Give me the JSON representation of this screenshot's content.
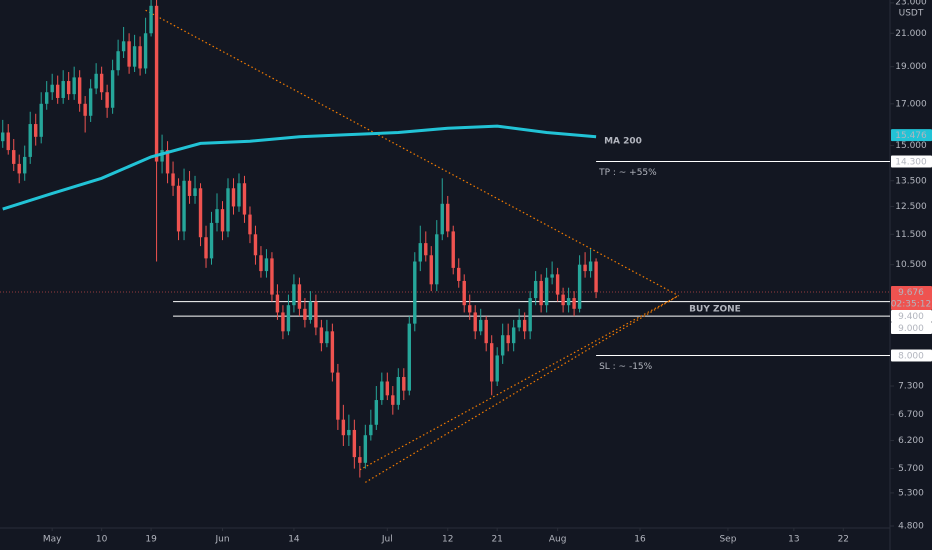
{
  "chart_data": {
    "type": "candlestick",
    "currency": "USDT",
    "log_scale": true,
    "grid": false,
    "up_color": "#26a69a",
    "down_color": "#ef5350",
    "xlim": [
      "04-22",
      "09-30"
    ],
    "ylim": [
      4.8,
      23.2
    ],
    "xticks": [
      {
        "value": "05-01",
        "label": "May"
      },
      {
        "value": "05-10",
        "label": "10"
      },
      {
        "value": "05-19",
        "label": "19"
      },
      {
        "value": "06-01",
        "label": "Jun"
      },
      {
        "value": "06-14",
        "label": "14"
      },
      {
        "value": "07-01",
        "label": "Jul"
      },
      {
        "value": "07-12",
        "label": "12"
      },
      {
        "value": "07-21",
        "label": "21"
      },
      {
        "value": "08-01",
        "label": "Aug"
      },
      {
        "value": "08-16",
        "label": "16"
      },
      {
        "value": "09-01",
        "label": "Sep"
      },
      {
        "value": "09-13",
        "label": "13"
      },
      {
        "value": "09-22",
        "label": "22"
      }
    ],
    "yticks": [
      {
        "value": 23,
        "label": "23.000"
      },
      {
        "value": 21,
        "label": "21.000"
      },
      {
        "value": 19,
        "label": "19.000"
      },
      {
        "value": 17,
        "label": "17.000"
      },
      {
        "value": 15,
        "label": "15.000"
      },
      {
        "value": 13.5,
        "label": "13.500"
      },
      {
        "value": 12.5,
        "label": "12.500"
      },
      {
        "value": 11.5,
        "label": "11.500"
      },
      {
        "value": 10.5,
        "label": "10.500"
      },
      {
        "value": 7.3,
        "label": "7.300"
      },
      {
        "value": 6.7,
        "label": "6.700"
      },
      {
        "value": 6.2,
        "label": "6.200"
      },
      {
        "value": 5.7,
        "label": "5.700"
      },
      {
        "value": 5.3,
        "label": "5.300"
      },
      {
        "value": 4.8,
        "label": "4.800"
      }
    ],
    "x": [
      "04-22",
      "04-23",
      "04-24",
      "04-25",
      "04-26",
      "04-27",
      "04-28",
      "04-29",
      "04-30",
      "05-01",
      "05-02",
      "05-03",
      "05-04",
      "05-05",
      "05-06",
      "05-07",
      "05-08",
      "05-09",
      "05-10",
      "05-11",
      "05-12",
      "05-13",
      "05-14",
      "05-15",
      "05-16",
      "05-17",
      "05-18",
      "05-19",
      "05-20",
      "05-21",
      "05-22",
      "05-23",
      "05-24",
      "05-25",
      "05-26",
      "05-27",
      "05-28",
      "05-29",
      "05-30",
      "05-31",
      "06-01",
      "06-02",
      "06-03",
      "06-04",
      "06-05",
      "06-06",
      "06-07",
      "06-08",
      "06-09",
      "06-10",
      "06-11",
      "06-12",
      "06-13",
      "06-14",
      "06-15",
      "06-16",
      "06-17",
      "06-18",
      "06-19",
      "06-20",
      "06-21",
      "06-22",
      "06-23",
      "06-24",
      "06-25",
      "06-26",
      "06-27",
      "06-28",
      "06-29",
      "06-30",
      "07-01",
      "07-02",
      "07-03",
      "07-04",
      "07-05",
      "07-06",
      "07-07",
      "07-08",
      "07-09",
      "07-10",
      "07-11",
      "07-12",
      "07-13",
      "07-14",
      "07-15",
      "07-16",
      "07-17",
      "07-18",
      "07-19",
      "07-20",
      "07-21",
      "07-22",
      "07-23",
      "07-24",
      "07-25",
      "07-26",
      "07-27",
      "07-28",
      "07-29",
      "07-30",
      "07-31",
      "08-01",
      "08-02",
      "08-03",
      "08-04",
      "08-05",
      "08-06",
      "08-07",
      "08-08"
    ],
    "open": [
      15.2,
      15.6,
      14.8,
      14.2,
      13.8,
      14.5,
      16.0,
      15.4,
      17.0,
      17.6,
      18.0,
      17.3,
      18.2,
      17.5,
      18.4,
      17.0,
      16.4,
      17.8,
      18.6,
      17.6,
      16.8,
      18.8,
      19.9,
      20.5,
      19.0,
      20.2,
      18.9,
      21.0,
      22.8,
      14.3,
      14.8,
      13.8,
      13.3,
      11.6,
      13.5,
      12.9,
      13.2,
      11.4,
      10.7,
      11.9,
      12.4,
      11.6,
      13.2,
      12.5,
      13.4,
      12.2,
      11.5,
      10.8,
      10.3,
      10.7,
      9.6,
      9.1,
      8.6,
      9.3,
      9.9,
      9.2,
      8.9,
      9.4,
      8.7,
      8.3,
      8.6,
      7.6,
      6.6,
      6.3,
      6.4,
      5.9,
      5.8,
      6.3,
      6.5,
      7.0,
      7.4,
      7.1,
      6.9,
      7.5,
      7.2,
      8.8,
      10.6,
      11.2,
      10.8,
      9.9,
      11.5,
      12.6,
      11.6,
      10.4,
      10.0,
      9.3,
      9.1,
      8.6,
      8.9,
      8.3,
      7.4,
      8.0,
      8.5,
      8.3,
      8.7,
      8.9,
      8.6,
      9.5,
      10.0,
      9.3,
      10.1,
      10.2,
      9.6,
      9.3,
      9.5,
      9.2,
      10.5,
      10.3,
      10.6
    ],
    "high": [
      16.2,
      16.0,
      15.3,
      14.6,
      15.0,
      16.6,
      16.5,
      17.6,
      18.2,
      18.6,
      18.5,
      18.8,
      18.7,
      19.0,
      18.8,
      17.4,
      18.3,
      19.2,
      19.0,
      18.0,
      19.4,
      20.6,
      21.4,
      21.0,
      20.9,
      20.8,
      22.0,
      23.2,
      23.2,
      15.5,
      15.2,
      14.3,
      13.6,
      14.0,
      13.9,
      13.7,
      13.4,
      11.8,
      12.3,
      13.0,
      12.7,
      13.6,
      13.6,
      13.8,
      13.7,
      12.5,
      11.8,
      11.1,
      11.0,
      10.9,
      9.9,
      9.3,
      9.6,
      10.2,
      10.1,
      9.5,
      9.7,
      9.6,
      8.9,
      8.9,
      8.8,
      7.8,
      6.9,
      6.7,
      6.6,
      6.1,
      6.5,
      6.8,
      7.3,
      7.6,
      7.6,
      7.3,
      7.7,
      7.7,
      9.0,
      10.9,
      11.8,
      11.6,
      11.1,
      12.0,
      13.6,
      12.9,
      11.8,
      10.7,
      10.2,
      9.6,
      9.3,
      9.2,
      9.0,
      8.5,
      8.2,
      8.8,
      8.8,
      8.9,
      9.2,
      9.1,
      9.7,
      10.3,
      10.2,
      10.4,
      10.6,
      10.4,
      9.8,
      9.8,
      9.7,
      10.8,
      10.9,
      11.0,
      10.7
    ],
    "low": [
      14.9,
      14.6,
      13.9,
      13.4,
      13.5,
      14.2,
      15.0,
      15.1,
      16.7,
      17.2,
      17.0,
      17.0,
      17.2,
      17.2,
      16.6,
      15.6,
      16.1,
      17.5,
      17.2,
      16.3,
      16.5,
      18.5,
      19.5,
      18.6,
      18.7,
      18.5,
      18.6,
      20.8,
      10.6,
      13.8,
      13.4,
      12.9,
      11.3,
      11.3,
      12.6,
      12.6,
      11.1,
      10.4,
      10.5,
      11.6,
      11.3,
      11.4,
      12.2,
      12.3,
      11.9,
      11.2,
      10.5,
      10.1,
      10.1,
      9.4,
      8.9,
      8.4,
      8.5,
      9.1,
      9.0,
      8.7,
      8.8,
      8.5,
      8.1,
      8.2,
      7.4,
      6.4,
      6.1,
      6.1,
      5.7,
      5.55,
      5.7,
      6.2,
      6.4,
      6.9,
      7.0,
      6.7,
      6.8,
      7.0,
      7.1,
      8.6,
      10.3,
      10.6,
      9.7,
      9.7,
      11.3,
      11.4,
      10.2,
      9.8,
      9.1,
      8.9,
      8.4,
      8.5,
      8.1,
      7.1,
      7.3,
      7.8,
      8.1,
      8.1,
      8.6,
      8.4,
      8.4,
      9.3,
      9.1,
      9.1,
      9.9,
      9.4,
      9.1,
      9.1,
      9.0,
      9.1,
      10.1,
      10.1,
      9.5
    ],
    "close": [
      15.6,
      14.8,
      14.2,
      13.8,
      14.5,
      16.0,
      15.4,
      17.0,
      17.6,
      18.0,
      17.3,
      18.2,
      17.5,
      18.4,
      17.0,
      16.4,
      17.8,
      18.6,
      17.6,
      16.8,
      18.8,
      19.9,
      20.5,
      19.0,
      20.2,
      18.9,
      21.0,
      22.8,
      14.3,
      14.8,
      13.8,
      13.3,
      11.6,
      13.5,
      12.9,
      13.2,
      11.4,
      10.7,
      11.9,
      12.4,
      11.6,
      13.2,
      12.5,
      13.4,
      12.2,
      11.5,
      10.8,
      10.3,
      10.7,
      9.6,
      9.1,
      8.6,
      9.3,
      9.9,
      9.2,
      8.9,
      9.4,
      8.7,
      8.3,
      8.6,
      7.6,
      6.6,
      6.3,
      6.4,
      5.9,
      5.8,
      6.3,
      6.5,
      7.0,
      7.4,
      7.1,
      6.9,
      7.5,
      7.2,
      8.8,
      10.6,
      11.2,
      10.8,
      9.9,
      11.5,
      12.6,
      11.6,
      10.4,
      10.0,
      9.3,
      9.1,
      8.6,
      8.9,
      8.3,
      7.4,
      8.0,
      8.5,
      8.3,
      8.7,
      8.9,
      8.6,
      9.5,
      10.0,
      9.3,
      10.1,
      10.2,
      9.6,
      9.3,
      9.5,
      9.2,
      10.5,
      10.3,
      10.6,
      9.676
    ],
    "ma": {
      "name": "MA 200",
      "color": "#22c3d6",
      "x": [
        "04-22",
        "05-01",
        "05-10",
        "05-19",
        "05-28",
        "06-06",
        "06-15",
        "06-24",
        "07-03",
        "07-12",
        "07-21",
        "07-30",
        "08-08"
      ],
      "values": [
        12.4,
        13.0,
        13.6,
        14.5,
        15.1,
        15.2,
        15.4,
        15.5,
        15.6,
        15.8,
        15.9,
        15.6,
        15.4
      ]
    },
    "trendlines": [
      {
        "color": "#f57c00",
        "x": [
          "05-18",
          "08-23"
        ],
        "y": [
          22.5,
          9.57
        ]
      },
      {
        "color": "#f57c00",
        "x": [
          "06-26",
          "08-23"
        ],
        "y": [
          5.68,
          9.57
        ]
      },
      {
        "color": "#f57c00",
        "x": [
          "06-27",
          "08-23"
        ],
        "y": [
          5.47,
          9.57
        ]
      }
    ],
    "levels": [
      {
        "label": "TP : ~ +55%",
        "value": 14.3,
        "start": "08-08",
        "color": "#26a69a"
      },
      {
        "label": "SL : ~ -15%",
        "value": 8.0,
        "start": "08-08",
        "color": "#ef5350"
      }
    ],
    "buy_zone": {
      "label": "BUY ZONE",
      "low": 9.0,
      "high": 9.4,
      "start": "05-23"
    },
    "price_labels": [
      {
        "value": 15.476,
        "label": "15.476",
        "color": "#22c3d6"
      },
      {
        "value": 14.3,
        "label": "14.300",
        "color": "#ffffff"
      },
      {
        "value": 9.676,
        "label": "9.676",
        "color": "#ef5350",
        "countdown": "02:35:12"
      },
      {
        "value": 9.4,
        "label": "9.400",
        "color": "#ffffff"
      },
      {
        "value": 9.0,
        "label": "9.000",
        "color": "#ffffff"
      },
      {
        "value": 8.0,
        "label": "8.000",
        "color": "#ffffff"
      }
    ]
  }
}
